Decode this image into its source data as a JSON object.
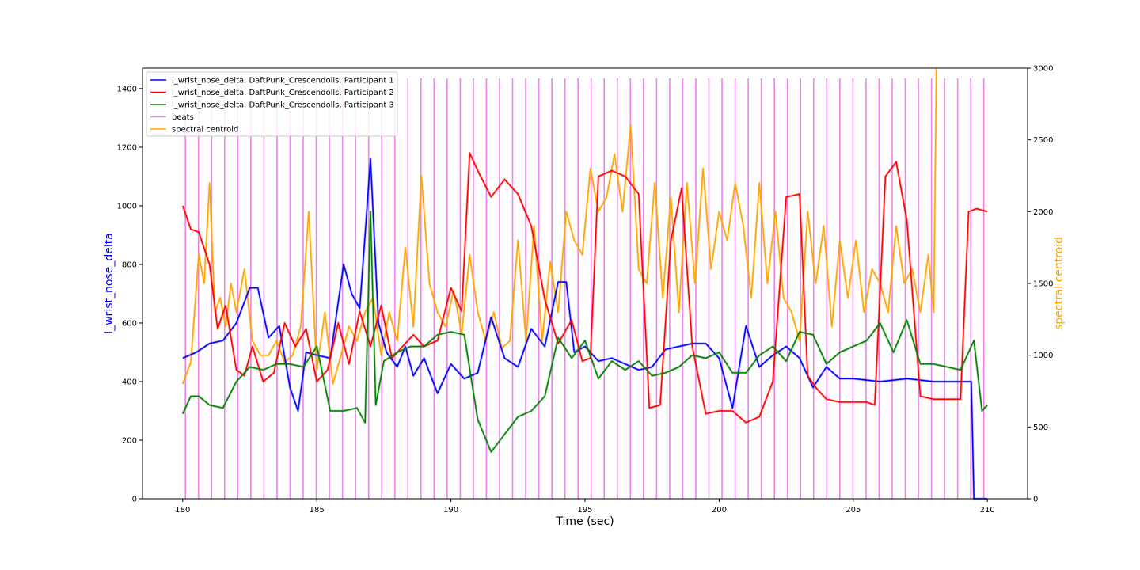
{
  "chart_data": {
    "type": "line",
    "xlabel": "Time (sec)",
    "ylabel_left": "l_wrist_nose_delta",
    "ylabel_right": "spectral centroid",
    "xlim": [
      178.5,
      211.5
    ],
    "ylim_left": [
      0,
      1470
    ],
    "ylim_right": [
      0,
      3000
    ],
    "xticks": [
      180,
      185,
      190,
      195,
      200,
      205,
      210
    ],
    "yticks_left": [
      0,
      200,
      400,
      600,
      800,
      1000,
      1200,
      1400
    ],
    "yticks_right": [
      0,
      500,
      1000,
      1500,
      2000,
      2500,
      3000
    ],
    "legend_position": "upper-left",
    "colors": {
      "p1": "#0000ff",
      "p2": "#ff0000",
      "p3": "#008000",
      "beats": "#ee82ee",
      "centroid": "#ffa500"
    },
    "legend": [
      {
        "key": "p1",
        "label": "l_wrist_nose_delta. DaftPunk_Crescendolls, Participant 1"
      },
      {
        "key": "p2",
        "label": "l_wrist_nose_delta. DaftPunk_Crescendolls, Participant 2"
      },
      {
        "key": "p3",
        "label": "l_wrist_nose_delta. DaftPunk_Crescendolls, Participant 3"
      },
      {
        "key": "beats",
        "label": "beats"
      },
      {
        "key": "centroid",
        "label": "spectral centroid"
      }
    ],
    "beats": {
      "start": 180.1,
      "end": 209.9,
      "interval": 0.488,
      "height": 1435
    },
    "series": [
      {
        "key": "p1",
        "axis": "left",
        "x": [
          180.0,
          180.5,
          181.0,
          181.5,
          182.0,
          182.5,
          182.8,
          183.2,
          183.6,
          184.0,
          184.3,
          184.6,
          185.0,
          185.5,
          186.0,
          186.3,
          186.6,
          186.8,
          187.0,
          187.3,
          187.6,
          188.0,
          188.3,
          188.6,
          189.0,
          189.5,
          190.0,
          190.5,
          191.0,
          191.5,
          192.0,
          192.5,
          193.0,
          193.5,
          194.0,
          194.3,
          194.6,
          195.0,
          195.5,
          196.0,
          196.5,
          197.0,
          197.5,
          198.0,
          198.5,
          199.0,
          199.5,
          200.0,
          200.5,
          201.0,
          201.5,
          202.0,
          202.5,
          203.0,
          203.5,
          204.0,
          204.5,
          205.0,
          206.0,
          207.0,
          208.0,
          209.0,
          209.4,
          209.5,
          210.0
        ],
        "values": [
          480,
          500,
          530,
          540,
          600,
          720,
          720,
          550,
          590,
          380,
          300,
          500,
          490,
          480,
          800,
          700,
          650,
          900,
          1160,
          600,
          500,
          450,
          520,
          420,
          480,
          360,
          460,
          410,
          430,
          620,
          480,
          450,
          580,
          520,
          740,
          740,
          500,
          520,
          470,
          480,
          460,
          440,
          450,
          510,
          520,
          530,
          530,
          480,
          310,
          590,
          450,
          490,
          520,
          480,
          380,
          450,
          410,
          410,
          400,
          410,
          400,
          400,
          400,
          0,
          0
        ]
      },
      {
        "key": "p2",
        "axis": "left",
        "x": [
          180.0,
          180.3,
          180.6,
          181.0,
          181.3,
          181.6,
          182.0,
          182.3,
          182.6,
          183.0,
          183.4,
          183.8,
          184.2,
          184.6,
          185.0,
          185.4,
          185.8,
          186.2,
          186.6,
          187.0,
          187.4,
          187.8,
          188.2,
          188.6,
          189.0,
          189.5,
          190.0,
          190.4,
          190.7,
          191.0,
          191.5,
          192.0,
          192.5,
          193.0,
          193.5,
          194.0,
          194.5,
          194.9,
          195.2,
          195.5,
          196.0,
          196.5,
          197.0,
          197.4,
          197.8,
          198.2,
          198.6,
          199.0,
          199.5,
          200.0,
          200.5,
          201.0,
          201.5,
          202.0,
          202.5,
          203.0,
          203.3,
          203.6,
          204.0,
          204.5,
          205.0,
          205.5,
          205.8,
          206.2,
          206.6,
          207.0,
          207.5,
          208.0,
          208.5,
          209.0,
          209.3,
          209.6,
          210.0
        ],
        "values": [
          1000,
          920,
          910,
          800,
          580,
          660,
          440,
          420,
          520,
          400,
          430,
          600,
          520,
          580,
          400,
          440,
          600,
          460,
          640,
          520,
          660,
          480,
          520,
          560,
          520,
          540,
          720,
          640,
          1180,
          1120,
          1030,
          1090,
          1040,
          930,
          680,
          530,
          610,
          470,
          480,
          1100,
          1120,
          1100,
          1040,
          310,
          320,
          880,
          1060,
          520,
          290,
          300,
          300,
          260,
          280,
          400,
          1030,
          1040,
          420,
          380,
          340,
          330,
          330,
          330,
          320,
          1100,
          1150,
          950,
          350,
          340,
          340,
          340,
          980,
          990,
          980
        ]
      },
      {
        "key": "p3",
        "axis": "left",
        "x": [
          180.0,
          180.3,
          180.6,
          181.0,
          181.5,
          182.0,
          182.5,
          183.0,
          183.5,
          184.0,
          184.5,
          185.0,
          185.5,
          186.0,
          186.5,
          186.8,
          187.0,
          187.2,
          187.5,
          188.0,
          188.5,
          189.0,
          189.5,
          190.0,
          190.5,
          191.0,
          191.5,
          192.0,
          192.5,
          193.0,
          193.5,
          194.0,
          194.5,
          195.0,
          195.5,
          196.0,
          196.5,
          197.0,
          197.5,
          198.0,
          198.5,
          199.0,
          199.5,
          200.0,
          200.5,
          201.0,
          201.5,
          202.0,
          202.5,
          203.0,
          203.5,
          204.0,
          204.5,
          205.0,
          205.5,
          206.0,
          206.5,
          207.0,
          207.5,
          208.0,
          208.5,
          209.0,
          209.5,
          209.8,
          210.0
        ],
        "values": [
          290,
          350,
          350,
          320,
          310,
          400,
          450,
          440,
          460,
          460,
          450,
          520,
          300,
          300,
          310,
          260,
          980,
          320,
          470,
          500,
          520,
          520,
          560,
          570,
          560,
          270,
          160,
          220,
          280,
          300,
          350,
          550,
          480,
          540,
          410,
          470,
          440,
          470,
          420,
          430,
          450,
          490,
          480,
          500,
          430,
          430,
          490,
          520,
          470,
          570,
          560,
          460,
          500,
          520,
          540,
          600,
          500,
          610,
          460,
          460,
          450,
          440,
          540,
          300,
          320
        ]
      },
      {
        "key": "centroid",
        "axis": "right",
        "x": [
          180.0,
          180.3,
          180.6,
          180.8,
          181.0,
          181.2,
          181.4,
          181.6,
          181.8,
          182.0,
          182.3,
          182.6,
          182.9,
          183.2,
          183.5,
          183.8,
          184.1,
          184.4,
          184.7,
          185.0,
          185.3,
          185.6,
          185.9,
          186.2,
          186.5,
          186.8,
          187.1,
          187.4,
          187.7,
          188.0,
          188.3,
          188.6,
          188.9,
          189.2,
          189.5,
          189.8,
          190.1,
          190.4,
          190.7,
          191.0,
          191.3,
          191.6,
          191.9,
          192.2,
          192.5,
          192.8,
          193.1,
          193.4,
          193.7,
          194.0,
          194.3,
          194.6,
          194.9,
          195.2,
          195.5,
          195.8,
          196.1,
          196.4,
          196.7,
          197.0,
          197.3,
          197.6,
          197.9,
          198.2,
          198.5,
          198.8,
          199.1,
          199.4,
          199.7,
          200.0,
          200.3,
          200.6,
          200.9,
          201.2,
          201.5,
          201.8,
          202.1,
          202.4,
          202.7,
          203.0,
          203.3,
          203.6,
          203.9,
          204.2,
          204.5,
          204.8,
          205.1,
          205.4,
          205.7,
          206.0,
          206.3,
          206.6,
          206.9,
          207.2,
          207.5,
          207.8,
          208.0,
          208.1
        ],
        "values": [
          800,
          950,
          1700,
          1500,
          2200,
          1300,
          1400,
          1200,
          1500,
          1300,
          1600,
          1100,
          1000,
          1000,
          1100,
          950,
          1000,
          1200,
          2000,
          900,
          1300,
          800,
          1000,
          1200,
          1100,
          1300,
          1400,
          1000,
          1300,
          1100,
          1750,
          1200,
          2250,
          1500,
          1300,
          1200,
          1450,
          1150,
          1700,
          1300,
          1100,
          1300,
          1050,
          1100,
          1800,
          1100,
          1900,
          1100,
          1650,
          1300,
          2000,
          1800,
          1700,
          2300,
          2000,
          2100,
          2400,
          2000,
          2600,
          1600,
          1500,
          2200,
          1400,
          2100,
          1300,
          2200,
          1500,
          2300,
          1600,
          2000,
          1800,
          2200,
          1900,
          1400,
          2200,
          1500,
          2000,
          1400,
          1300,
          1100,
          2000,
          1500,
          1900,
          1200,
          1800,
          1400,
          1800,
          1300,
          1600,
          1500,
          1300,
          1900,
          1500,
          1600,
          1300,
          1700,
          1300,
          3000
        ]
      }
    ]
  }
}
